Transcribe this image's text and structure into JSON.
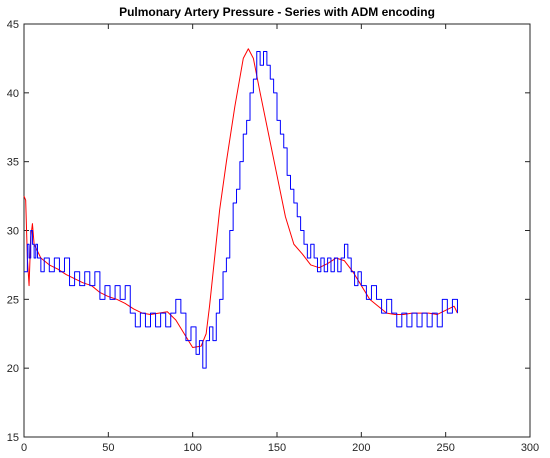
{
  "chart_data": {
    "type": "line",
    "title": "Pulmonary Artery Pressure - Series with ADM encoding",
    "xlabel": "",
    "ylabel": "",
    "xlim": [
      0,
      300
    ],
    "ylim": [
      15,
      45
    ],
    "xticks": [
      0,
      50,
      100,
      150,
      200,
      250,
      300
    ],
    "yticks": [
      15,
      20,
      25,
      30,
      35,
      40,
      45
    ],
    "grid": false,
    "series": [
      {
        "color": "#ff0000",
        "style": "smooth",
        "x": [
          0,
          1,
          2,
          3,
          4,
          5,
          6,
          8,
          10,
          12,
          15,
          20,
          25,
          30,
          35,
          40,
          45,
          50,
          55,
          60,
          65,
          70,
          75,
          80,
          85,
          90,
          95,
          100,
          105,
          108,
          110,
          113,
          116,
          120,
          125,
          130,
          133,
          136,
          140,
          145,
          150,
          155,
          160,
          165,
          170,
          175,
          180,
          185,
          190,
          195,
          200,
          205,
          210,
          215,
          220,
          225,
          230,
          235,
          240,
          245,
          250,
          255,
          257
        ],
        "y": [
          32.5,
          32.2,
          28.0,
          26.0,
          29.5,
          30.5,
          29.0,
          28.5,
          28.0,
          27.8,
          27.5,
          27.2,
          26.8,
          26.5,
          26.2,
          26.0,
          25.5,
          25.2,
          25.0,
          24.7,
          24.3,
          24.0,
          23.9,
          24.0,
          24.1,
          23.5,
          22.5,
          21.5,
          21.6,
          22.5,
          24.5,
          28.0,
          31.5,
          35.0,
          39.0,
          42.5,
          43.2,
          42.5,
          40.0,
          37.0,
          34.0,
          31.0,
          29.0,
          28.3,
          27.5,
          27.3,
          27.6,
          28.0,
          27.8,
          27.0,
          26.0,
          25.0,
          24.5,
          24.0,
          23.9,
          23.9,
          24.0,
          24.0,
          24.0,
          23.9,
          24.2,
          24.5,
          24.0
        ]
      },
      {
        "color": "#0000ff",
        "style": "staircase",
        "x": [
          0,
          2,
          3,
          4,
          5,
          6,
          7,
          8,
          10,
          12,
          15,
          18,
          21,
          24,
          27,
          30,
          33,
          36,
          39,
          42,
          45,
          48,
          51,
          54,
          57,
          60,
          63,
          66,
          69,
          72,
          75,
          78,
          81,
          84,
          87,
          90,
          93,
          96,
          99,
          102,
          104,
          106,
          108,
          110,
          112,
          114,
          116,
          118,
          120,
          122,
          124,
          126,
          128,
          130,
          132,
          134,
          136,
          138,
          140,
          142,
          144,
          146,
          148,
          150,
          152,
          154,
          156,
          158,
          160,
          162,
          164,
          166,
          168,
          170,
          172,
          174,
          176,
          178,
          180,
          182,
          184,
          186,
          188,
          190,
          192,
          194,
          196,
          198,
          200,
          203,
          206,
          209,
          212,
          215,
          218,
          221,
          224,
          227,
          230,
          233,
          236,
          239,
          242,
          245,
          248,
          251,
          254,
          257
        ],
        "y": [
          27,
          29,
          28,
          30,
          29,
          28,
          29,
          28,
          27,
          28,
          27,
          28,
          27,
          28,
          26,
          27,
          26,
          27,
          26,
          27,
          25,
          26,
          25,
          26,
          25,
          26,
          24,
          23,
          24,
          23,
          24,
          23,
          24,
          23,
          24,
          25,
          24,
          22,
          23,
          21,
          22,
          20,
          22,
          23,
          22,
          24,
          25,
          27,
          28,
          30,
          32,
          33,
          35,
          37,
          38,
          40,
          41,
          43,
          42,
          43,
          42,
          41,
          40,
          38,
          37,
          36,
          34,
          33,
          32,
          31,
          30,
          29,
          28,
          29,
          28,
          27,
          28,
          27,
          28,
          27,
          28,
          27,
          28,
          29,
          28,
          27,
          26,
          27,
          26,
          25,
          26,
          25,
          24,
          25,
          24,
          23,
          24,
          23,
          24,
          23,
          24,
          23,
          24,
          23,
          25,
          24,
          25,
          24
        ]
      }
    ]
  }
}
